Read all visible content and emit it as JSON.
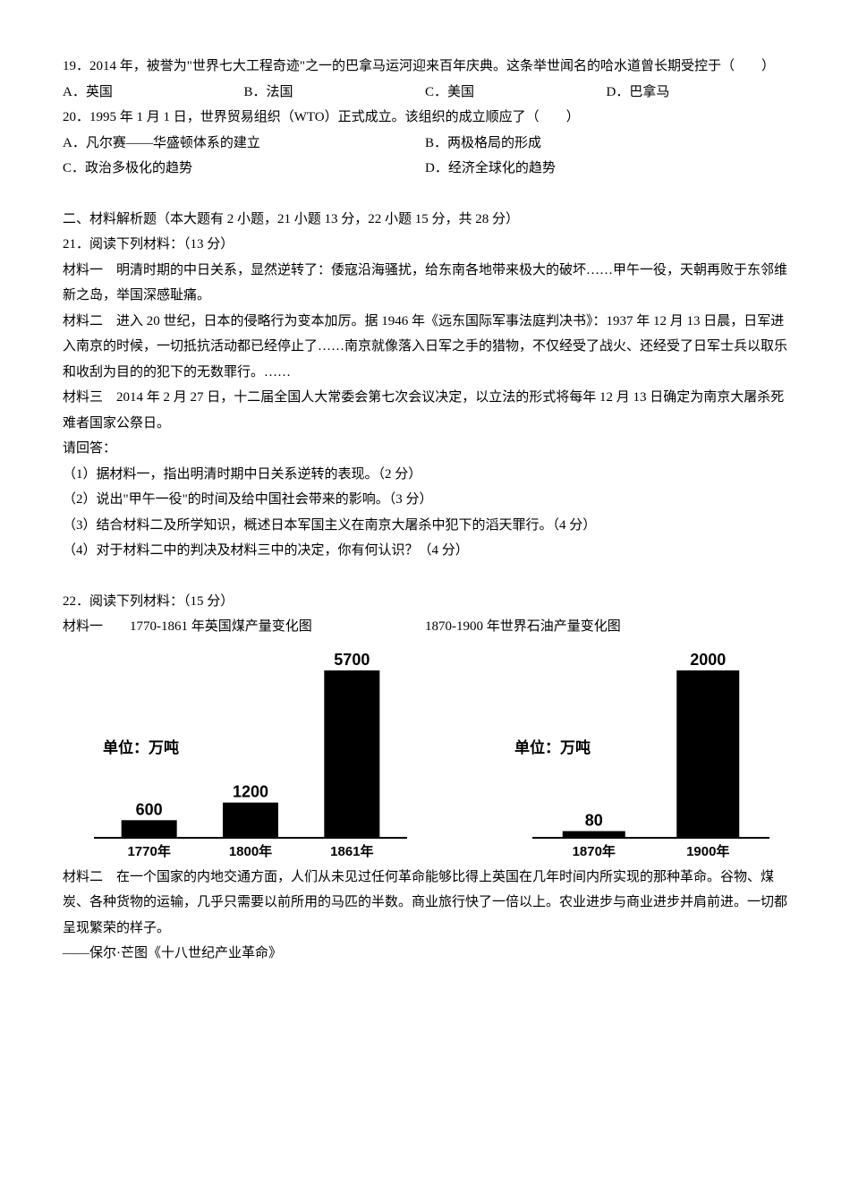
{
  "q19": {
    "stem": "19．2014 年，被誉为\"世界七大工程奇迹\"之一的巴拿马运河迎来百年庆典。这条举世闻名的哈水道曾长期受控于（　　）",
    "optA": "A．英国",
    "optB": "B．法国",
    "optC": "C．美国",
    "optD": "D．巴拿马"
  },
  "q20": {
    "stem": "20．1995 年 1 月 1 日，世界贸易组织（WTO）正式成立。该组织的成立顺应了（　　）",
    "optA": "A．凡尔赛——华盛顿体系的建立",
    "optB": "B．两极格局的形成",
    "optC": "C．政治多极化的趋势",
    "optD": "D．经济全球化的趋势"
  },
  "section2_header": "二、材料解析题（本大题有 2 小题，21 小题 13 分，22 小题 15 分，共 28 分）",
  "q21": {
    "title": "21．阅读下列材料：（13 分）",
    "m1": "材料一　明清时期的中日关系，显然逆转了：倭寇沿海骚扰，给东南各地带来极大的破坏……甲午一役，天朝再败于东邻维新之岛，举国深感耻痛。",
    "m2": "材料二　进入 20 世纪，日本的侵略行为变本加厉。据 1946 年《远东国际军事法庭判决书》：1937 年 12 月 13 日晨，日军进入南京的时候，一切抵抗活动都已经停止了……南京就像落入日军之手的猎物，不仅经受了战火、还经受了日军士兵以取乐和收刮为目的的犯下的无数罪行。……",
    "m3": "材料三　2014 年 2 月 27 日，十二届全国人大常委会第七次会议决定，以立法的形式将每年 12 月 13 日确定为南京大屠杀死难者国家公祭日。",
    "please": "请回答：",
    "sub1": "（1）据材料一，指出明清时期中日关系逆转的表现。（2 分）",
    "sub2": "（2）说出\"甲午一役\"的时间及给中国社会带来的影响。（3 分）",
    "sub3": "（3）结合材料二及所学知识，概述日本军国主义在南京大屠杀中犯下的滔天罪行。（4 分）",
    "sub4": "（4）对于材料二中的判决及材料三中的决定，你有何认识？（4 分）"
  },
  "q22": {
    "title": "22．阅读下列材料：（15 分）",
    "m1_label": "材料一　　1770-1861 年英国煤产量变化图",
    "m1_label2": "1870-1900 年世界石油产量变化图",
    "m2": "材料二　在一个国家的内地交通方面，人们从未见过任何革命能够比得上英国在几年时间内所实现的那种革命。谷物、煤炭、各种货物的运输，几乎只需要以前所用的马匹的半数。商业旅行快了一倍以上。农业进步与商业进步并肩前进。一切都呈现繁荣的样子。",
    "citation": "——保尔·芒图《十八世纪产业革命》"
  },
  "chart1": {
    "type": "bar",
    "unit_label": "单位：万吨",
    "categories": [
      "1770年",
      "1800年",
      "1861年"
    ],
    "values": [
      600,
      1200,
      5700
    ],
    "value_labels": [
      "600",
      "1200",
      "5700"
    ],
    "bar_color": "#000000",
    "text_color": "#000000",
    "background_color": "#ffffff",
    "axis_color": "#000000",
    "ymax": 5700,
    "value_fontsize": 18,
    "category_fontsize": 15,
    "unit_fontsize": 17,
    "font_weight": "bold"
  },
  "chart2": {
    "type": "bar",
    "unit_label": "单位：万吨",
    "categories": [
      "1870年",
      "1900年"
    ],
    "values": [
      80,
      2000
    ],
    "value_labels": [
      "80",
      "2000"
    ],
    "bar_color": "#000000",
    "text_color": "#000000",
    "background_color": "#ffffff",
    "axis_color": "#000000",
    "ymax": 2000,
    "value_fontsize": 18,
    "category_fontsize": 15,
    "unit_fontsize": 17,
    "font_weight": "bold"
  }
}
